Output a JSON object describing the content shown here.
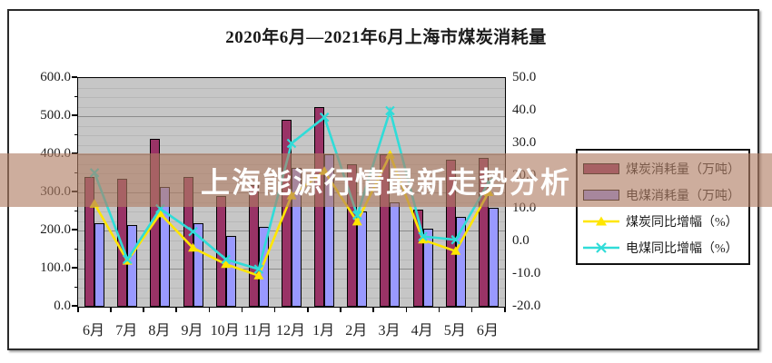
{
  "page": {
    "background": "#ffffff"
  },
  "title": "2020年6月—2021年6月上海市煤炭消耗量",
  "overlay_banner": {
    "text": "上海能源行情最新走势分析",
    "text_color": "#ffffff",
    "band_color": "rgba(176,125,100,0.63)"
  },
  "chart_data": {
    "type": "bar",
    "subtype": "bar+line combo, dual axis",
    "title": "2020年6月—2021年6月上海市煤炭消耗量",
    "categories": [
      "6月",
      "7月",
      "8月",
      "9月",
      "10月",
      "11月",
      "12月",
      "1月",
      "2月",
      "3月",
      "4月",
      "5月",
      "6月"
    ],
    "series": [
      {
        "name": "煤炭消耗量（万吨）",
        "type": "bar",
        "axis": "left",
        "color": "#993366",
        "values": [
          340,
          335,
          440,
          340,
          290,
          320,
          490,
          525,
          375,
          400,
          255,
          385,
          390
        ]
      },
      {
        "name": "电煤消耗量（万吨）",
        "type": "bar",
        "axis": "left",
        "color": "#9999ff",
        "values": [
          220,
          215,
          315,
          220,
          185,
          210,
          365,
          400,
          250,
          275,
          205,
          235,
          260
        ]
      },
      {
        "name": "煤炭同比增幅（%）",
        "type": "line",
        "axis": "right",
        "color": "#ffe600",
        "marker": "triangle",
        "values": [
          11.5,
          -6,
          8.5,
          -2,
          -7,
          -10.5,
          14,
          21.5,
          6,
          26.5,
          0.5,
          -3,
          15
        ]
      },
      {
        "name": "电煤同比增幅（%）",
        "type": "line",
        "axis": "right",
        "color": "#30dcd8",
        "marker": "x",
        "values": [
          21,
          -5.5,
          10,
          3,
          -5.5,
          -8.5,
          30,
          38,
          8,
          40,
          1.5,
          0.5,
          18
        ]
      }
    ],
    "left_axis": {
      "min": 0,
      "max": 600,
      "major_step": 100,
      "minor_step": 25,
      "tick_format": "0.0"
    },
    "right_axis": {
      "min": -20,
      "max": 50,
      "major_step": 10,
      "tick_format": "0.0"
    },
    "plot_background": "#c6c6c6",
    "gridlines": "horizontal, minor + major",
    "legend_position": "right"
  }
}
